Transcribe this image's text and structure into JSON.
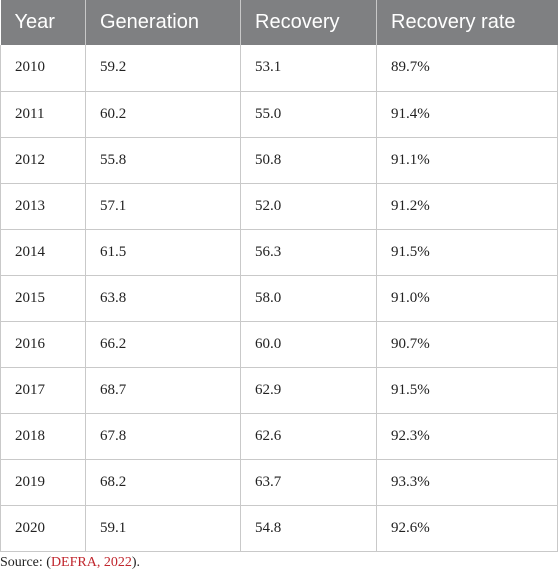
{
  "table": {
    "headers": [
      "Year",
      "Generation",
      "Recovery",
      "Recovery rate"
    ],
    "rows": [
      [
        "2010",
        "59.2",
        "53.1",
        "89.7%"
      ],
      [
        "2011",
        "60.2",
        "55.0",
        "91.4%"
      ],
      [
        "2012",
        "55.8",
        "50.8",
        "91.1%"
      ],
      [
        "2013",
        "57.1",
        "52.0",
        "91.2%"
      ],
      [
        "2014",
        "61.5",
        "56.3",
        "91.5%"
      ],
      [
        "2015",
        "63.8",
        "58.0",
        "91.0%"
      ],
      [
        "2016",
        "66.2",
        "60.0",
        "90.7%"
      ],
      [
        "2017",
        "68.7",
        "62.9",
        "91.5%"
      ],
      [
        "2018",
        "67.8",
        "62.6",
        "92.3%"
      ],
      [
        "2019",
        "68.2",
        "63.7",
        "93.3%"
      ],
      [
        "2020",
        "59.1",
        "54.8",
        "92.6%"
      ]
    ]
  },
  "source": {
    "prefix": "Source: (",
    "link_text": "DEFRA, 2022",
    "suffix": ")."
  },
  "colors": {
    "header_background": "#7f8082",
    "header_text": "#ffffff",
    "link": "#c0262d"
  }
}
